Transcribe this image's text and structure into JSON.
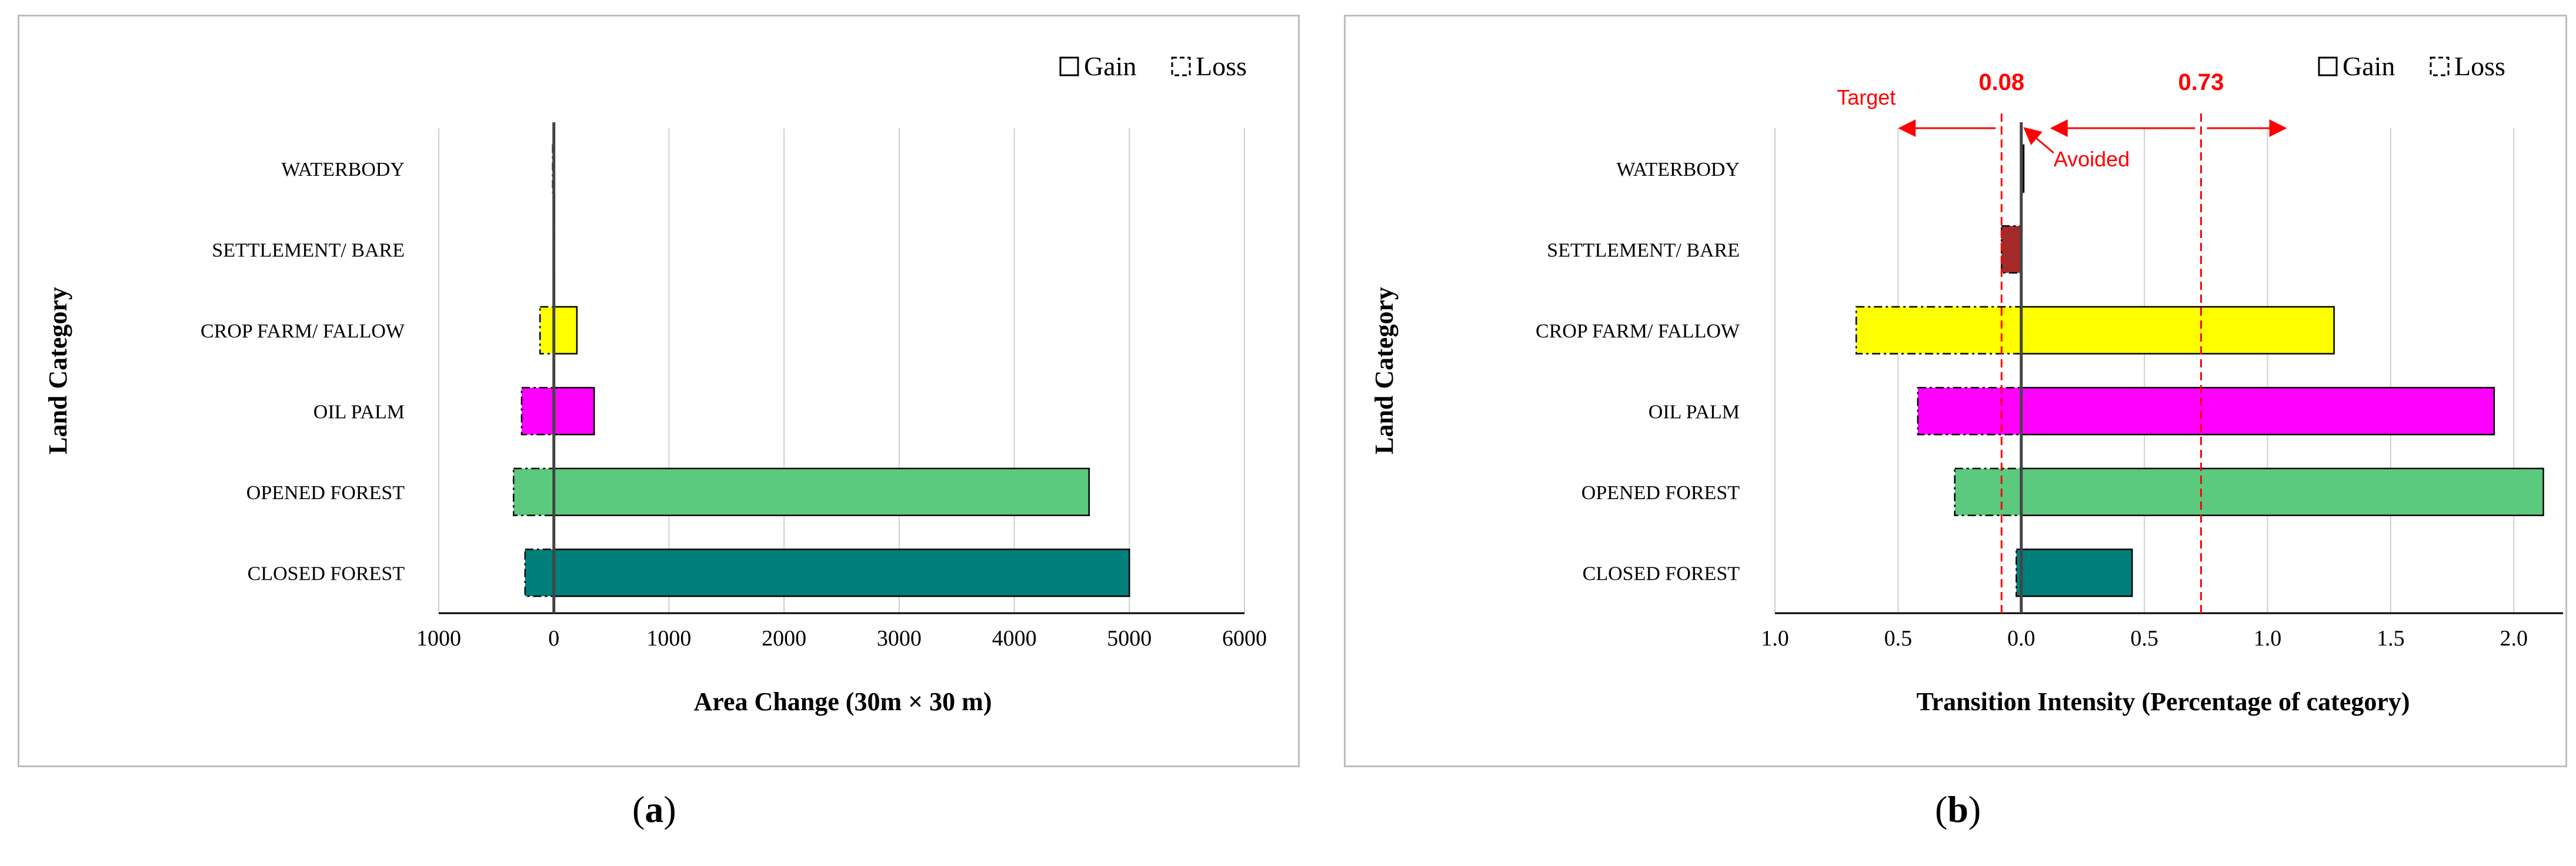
{
  "panel_labels": {
    "a_open": "(",
    "a_letter": "a",
    "a_close": ")",
    "b_open": "(",
    "b_letter": "b",
    "b_close": ")"
  },
  "chart_data": [
    {
      "type": "bar",
      "orientation": "horizontal",
      "categories": [
        "CLOSED FOREST",
        "OPENED FOREST",
        "OIL PALM",
        "CROP FARM/ FALLOW",
        "SETTLEMENT/ BARE",
        "WATERBODY"
      ],
      "series": [
        {
          "name": "Gain",
          "values": [
            5000,
            4650,
            350,
            200,
            5,
            5
          ]
        },
        {
          "name": "Loss",
          "values": [
            -250,
            -350,
            -280,
            -120,
            -5,
            -10
          ]
        }
      ],
      "bar_colors": [
        "#007f7a",
        "#5bc97e",
        "#ff00ff",
        "#ffff00",
        "#8b1a1a",
        "#1f3a4a"
      ],
      "xlabel": "Area Change (30m × 30 m)",
      "ylabel": "Land Category",
      "xlim": [
        -1000,
        6000
      ],
      "xticks": [
        -1000,
        0,
        1000,
        2000,
        3000,
        4000,
        5000,
        6000
      ],
      "xtick_labels": [
        "1000",
        "0",
        "1000",
        "2000",
        "3000",
        "4000",
        "5000",
        "6000"
      ],
      "grid": "vertical",
      "legend": {
        "position": "top-right",
        "items": [
          "Gain",
          "Loss"
        ]
      }
    },
    {
      "type": "bar",
      "orientation": "horizontal",
      "categories": [
        "CLOSED FOREST",
        "OPENED FOREST",
        "OIL PALM",
        "CROP FARM/ FALLOW",
        "SETTLEMENT/ BARE",
        "WATERBODY"
      ],
      "series": [
        {
          "name": "Gain",
          "values": [
            0.45,
            2.12,
            1.92,
            1.27,
            0.0,
            0.01
          ]
        },
        {
          "name": "Loss",
          "values": [
            -0.02,
            -0.27,
            -0.42,
            -0.67,
            -0.08,
            0.0
          ]
        }
      ],
      "bar_colors": [
        "#007f7a",
        "#5bc97e",
        "#ff00ff",
        "#ffff00",
        "#a52a2a",
        "#1f3a4a"
      ],
      "xlabel": "Transition Intensity (Percentage of category)",
      "ylabel": "Land Category",
      "xlim": [
        -1.0,
        2.2
      ],
      "xticks": [
        -1.0,
        -0.5,
        0.0,
        0.5,
        1.0,
        1.5,
        2.0
      ],
      "xtick_labels": [
        "1.0",
        "0.5",
        "0.0",
        "0.5",
        "1.0",
        "1.5",
        "2.0"
      ],
      "grid": "vertical",
      "legend": {
        "position": "top-right",
        "items": [
          "Gain",
          "Loss"
        ]
      },
      "annotations": {
        "uniform_lines": [
          -0.08,
          0.73
        ],
        "uniform_labels": [
          "0.08",
          "0.73"
        ],
        "target_label": "Target",
        "avoided_label": "Avoided",
        "color": "#ff0000"
      }
    }
  ]
}
